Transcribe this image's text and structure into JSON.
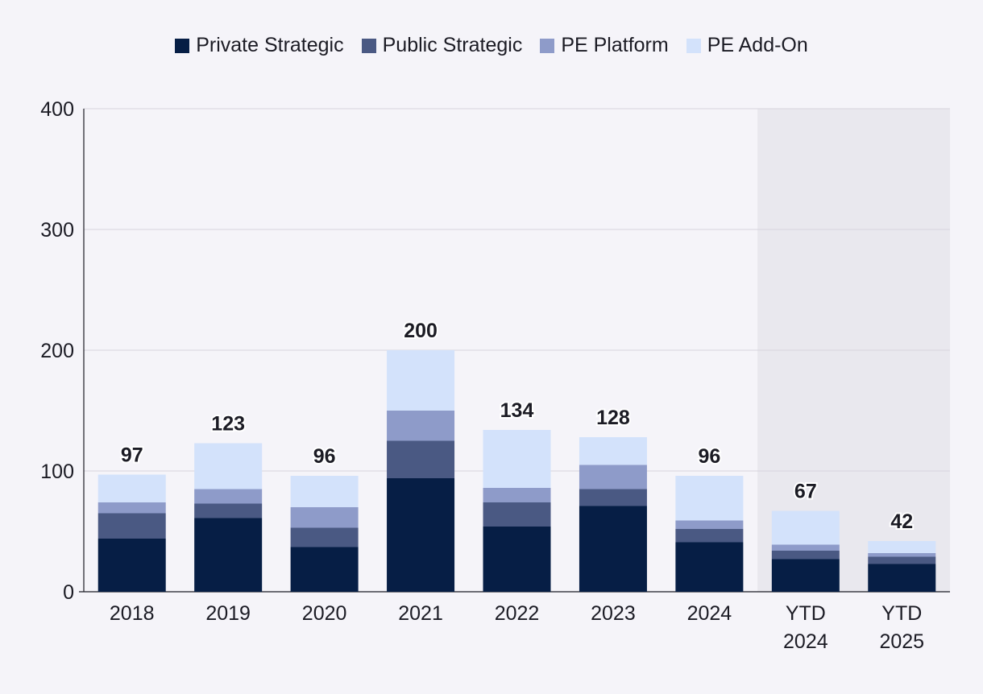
{
  "chart_data": {
    "type": "bar",
    "stacked": true,
    "categories": [
      [
        "2018"
      ],
      [
        "2019"
      ],
      [
        "2020"
      ],
      [
        "2021"
      ],
      [
        "2022"
      ],
      [
        "2023"
      ],
      [
        "2024"
      ],
      [
        "YTD",
        "2024"
      ],
      [
        "YTD",
        "2025"
      ]
    ],
    "series": [
      {
        "name": "Private Strategic",
        "color": "#061e45",
        "values": [
          44,
          61,
          37,
          94,
          54,
          71,
          41,
          27,
          23
        ]
      },
      {
        "name": "Public Strategic",
        "color": "#4a5983",
        "values": [
          21,
          12,
          16,
          31,
          20,
          14,
          11,
          7,
          6
        ]
      },
      {
        "name": "PE Platform",
        "color": "#8e9bc9",
        "values": [
          9,
          12,
          17,
          25,
          12,
          20,
          7,
          5,
          3
        ]
      },
      {
        "name": "PE Add-On",
        "color": "#d3e2fb",
        "values": [
          23,
          38,
          26,
          50,
          48,
          23,
          37,
          28,
          10
        ]
      }
    ],
    "totals": [
      "97",
      "123",
      "96",
      "200",
      "134",
      "128",
      "96",
      "67",
      "42"
    ],
    "y_ticks": [
      "0",
      "100",
      "200",
      "300",
      "400"
    ],
    "ylim": [
      0,
      400
    ],
    "grid": true,
    "legend_position": "top-center",
    "highlighted_categories": [
      "YTD 2024",
      "YTD 2025"
    ],
    "highlight_color": "#e9e8ee"
  }
}
